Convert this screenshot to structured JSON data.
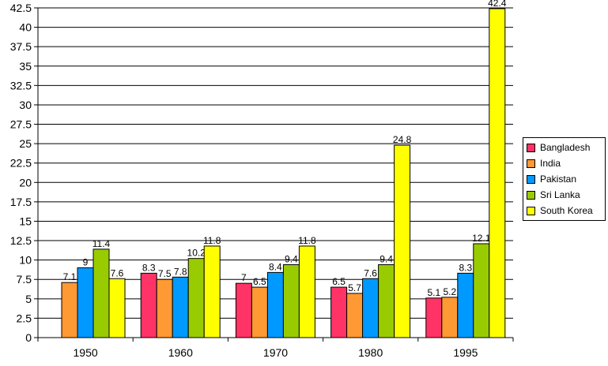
{
  "chart_data": {
    "type": "bar",
    "title": "",
    "xlabel": "",
    "ylabel": "",
    "categories": [
      "1950",
      "1960",
      "1970",
      "1980",
      "1995"
    ],
    "series": [
      {
        "name": "Bangladesh",
        "color": "#ff3366",
        "values": [
          null,
          8.3,
          7,
          6.5,
          5.1
        ]
      },
      {
        "name": "India",
        "color": "#ff9933",
        "values": [
          7.1,
          7.5,
          6.5,
          5.7,
          5.2
        ]
      },
      {
        "name": "Pakistan",
        "color": "#0099ff",
        "values": [
          9,
          7.8,
          8.4,
          7.6,
          8.3
        ]
      },
      {
        "name": "Sri Lanka",
        "color": "#99cc00",
        "values": [
          11.4,
          10.2,
          9.4,
          9.4,
          12.1
        ]
      },
      {
        "name": "South Korea",
        "color": "#ffff00",
        "values": [
          7.6,
          11.8,
          11.8,
          24.8,
          42.4
        ]
      }
    ],
    "ylim": [
      0,
      42.5
    ],
    "yticks": [
      "0",
      "2.5",
      "5",
      "7.5",
      "10",
      "12.5",
      "15",
      "17.5",
      "20",
      "22.5",
      "25",
      "27.5",
      "30",
      "32.5",
      "35",
      "37.5",
      "40",
      "42.5"
    ],
    "grid": true,
    "legend_position": "right"
  }
}
